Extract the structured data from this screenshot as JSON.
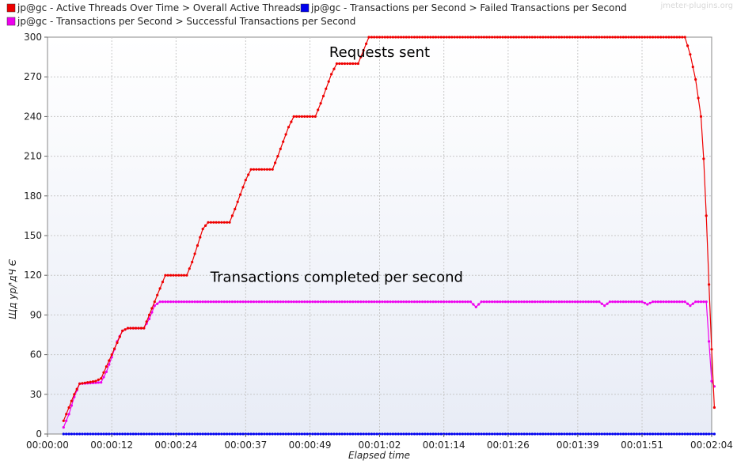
{
  "watermark": "jmeter-plugins.org",
  "colors": {
    "active_threads": "#ee0000",
    "failed_tps": "#0000ee",
    "successful_tps": "#ee00ee",
    "grid": "#c8c8c8",
    "plot_bg_top": "#ffffff",
    "plot_bg_bottom": "#e8ecf6"
  },
  "chart_data": {
    "type": "line",
    "legend": {
      "placement": "top-left",
      "entries": [
        "jp@gc - Active Threads Over Time > Overall Active Threads",
        "jp@gc - Transactions per Second > Failed Transactions per Second",
        "jp@gc - Transactions per Second > Successful Transactions per Second"
      ]
    },
    "xlabel": "Elapsed time",
    "ylabel": "Щд ур/'дЧ Є",
    "x_range_seconds": [
      0,
      124
    ],
    "ylim": [
      0,
      300
    ],
    "grid": true,
    "y_ticks": [
      "0",
      "30",
      "60",
      "90",
      "120",
      "150",
      "180",
      "210",
      "240",
      "270",
      "300"
    ],
    "x_ticks": [
      {
        "t": 0,
        "label": "00:00:00"
      },
      {
        "t": 12,
        "label": "00:00:12"
      },
      {
        "t": 24,
        "label": "00:00:24"
      },
      {
        "t": 37,
        "label": "00:00:37"
      },
      {
        "t": 49,
        "label": "00:00:49"
      },
      {
        "t": 62,
        "label": "00:01:02"
      },
      {
        "t": 74,
        "label": "00:01:14"
      },
      {
        "t": 86,
        "label": "00:01:26"
      },
      {
        "t": 99,
        "label": "00:01:39"
      },
      {
        "t": 111,
        "label": "00:01:51"
      },
      {
        "t": 124,
        "label": "00:02:04"
      }
    ],
    "annotations": [
      {
        "text": "Requests sent",
        "t": 62,
        "y": 285
      },
      {
        "text": "Transactions completed per second",
        "t": 54,
        "y": 115
      }
    ],
    "series": [
      {
        "name": "jp@gc - Active Threads Over Time > Overall Active Threads",
        "key": "active_threads",
        "points": [
          [
            3,
            10
          ],
          [
            5,
            30
          ],
          [
            6,
            38
          ],
          [
            9,
            40
          ],
          [
            10,
            42
          ],
          [
            12,
            60
          ],
          [
            14,
            78
          ],
          [
            15,
            80
          ],
          [
            18,
            80
          ],
          [
            19,
            90
          ],
          [
            21,
            110
          ],
          [
            22,
            120
          ],
          [
            26,
            120
          ],
          [
            27,
            130
          ],
          [
            29,
            155
          ],
          [
            30,
            160
          ],
          [
            34,
            160
          ],
          [
            35,
            170
          ],
          [
            37,
            192
          ],
          [
            38,
            200
          ],
          [
            42,
            200
          ],
          [
            43,
            210
          ],
          [
            45,
            232
          ],
          [
            46,
            240
          ],
          [
            50,
            240
          ],
          [
            51,
            250
          ],
          [
            53,
            272
          ],
          [
            54,
            280
          ],
          [
            58,
            280
          ],
          [
            59,
            290
          ],
          [
            60,
            300
          ],
          [
            119,
            300
          ],
          [
            120,
            287
          ],
          [
            121,
            268
          ],
          [
            122,
            240
          ],
          [
            122.5,
            208
          ],
          [
            123,
            165
          ],
          [
            123.5,
            113
          ],
          [
            124,
            64
          ],
          [
            124.5,
            20
          ]
        ]
      },
      {
        "name": "jp@gc - Transactions per Second > Failed Transactions per Second",
        "key": "failed_tps",
        "points": [
          [
            3,
            0
          ],
          [
            124.5,
            0
          ]
        ]
      },
      {
        "name": "jp@gc - Transactions per Second > Successful Transactions per Second",
        "key": "successful_tps",
        "points": [
          [
            3,
            5
          ],
          [
            4,
            15
          ],
          [
            5,
            28
          ],
          [
            6,
            38
          ],
          [
            10,
            39
          ],
          [
            11,
            47
          ],
          [
            12,
            58
          ],
          [
            13,
            70
          ],
          [
            14,
            78
          ],
          [
            15,
            80
          ],
          [
            18,
            80
          ],
          [
            19,
            87
          ],
          [
            20,
            97
          ],
          [
            21,
            100
          ],
          [
            79,
            100
          ],
          [
            80,
            96
          ],
          [
            81,
            100
          ],
          [
            103,
            100
          ],
          [
            104,
            97
          ],
          [
            105,
            100
          ],
          [
            111,
            100
          ],
          [
            112,
            98
          ],
          [
            113,
            100
          ],
          [
            119,
            100
          ],
          [
            120,
            97
          ],
          [
            121,
            100
          ],
          [
            123,
            100
          ],
          [
            124,
            40
          ],
          [
            124.5,
            36
          ]
        ]
      }
    ]
  }
}
